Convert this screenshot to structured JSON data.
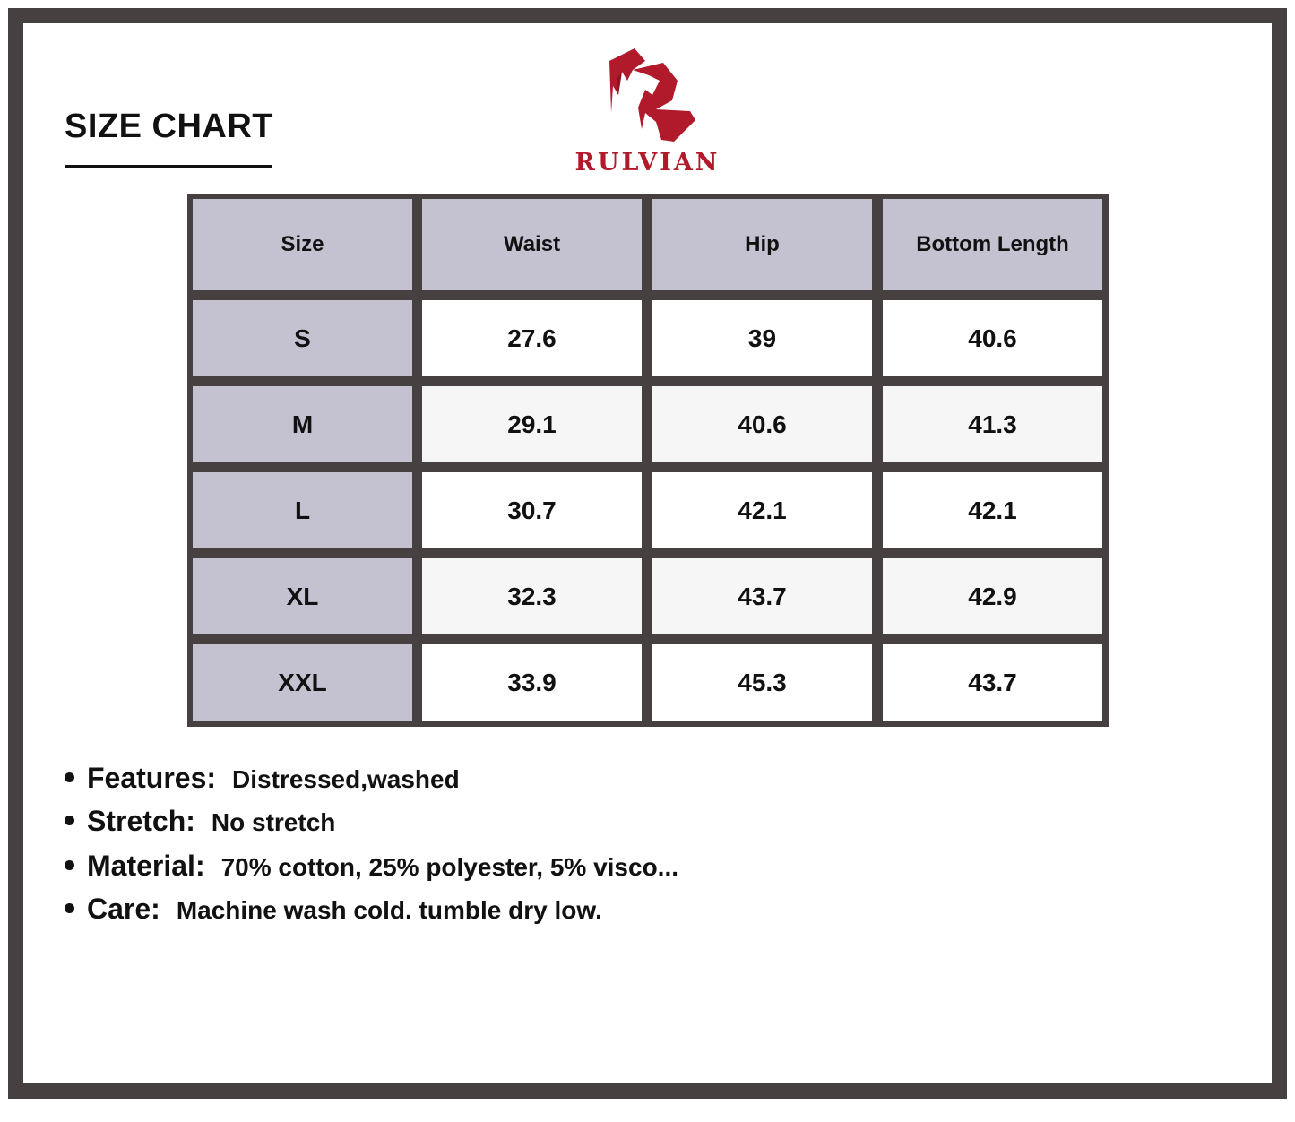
{
  "title": "SIZE CHART",
  "brand": {
    "name": "RULVIAN",
    "color": "#b01a2a"
  },
  "table": {
    "headers": [
      "Size",
      "Waist",
      "Hip",
      "Bottom Length"
    ],
    "rows": [
      [
        "S",
        "27.6",
        "39",
        "40.6"
      ],
      [
        "M",
        "29.1",
        "40.6",
        "41.3"
      ],
      [
        "L",
        "30.7",
        "42.1",
        "42.1"
      ],
      [
        "XL",
        "32.3",
        "43.7",
        "42.9"
      ],
      [
        "XXL",
        "33.9",
        "45.3",
        "43.7"
      ]
    ]
  },
  "notes": [
    {
      "label": "Features:",
      "value": "Distressed,washed"
    },
    {
      "label": "Stretch:",
      "value": "No stretch"
    },
    {
      "label": "Material:",
      "value": "70% cotton, 25% polyester, 5% visco..."
    },
    {
      "label": "Care:",
      "value": "Machine wash cold. tumble dry low."
    }
  ]
}
